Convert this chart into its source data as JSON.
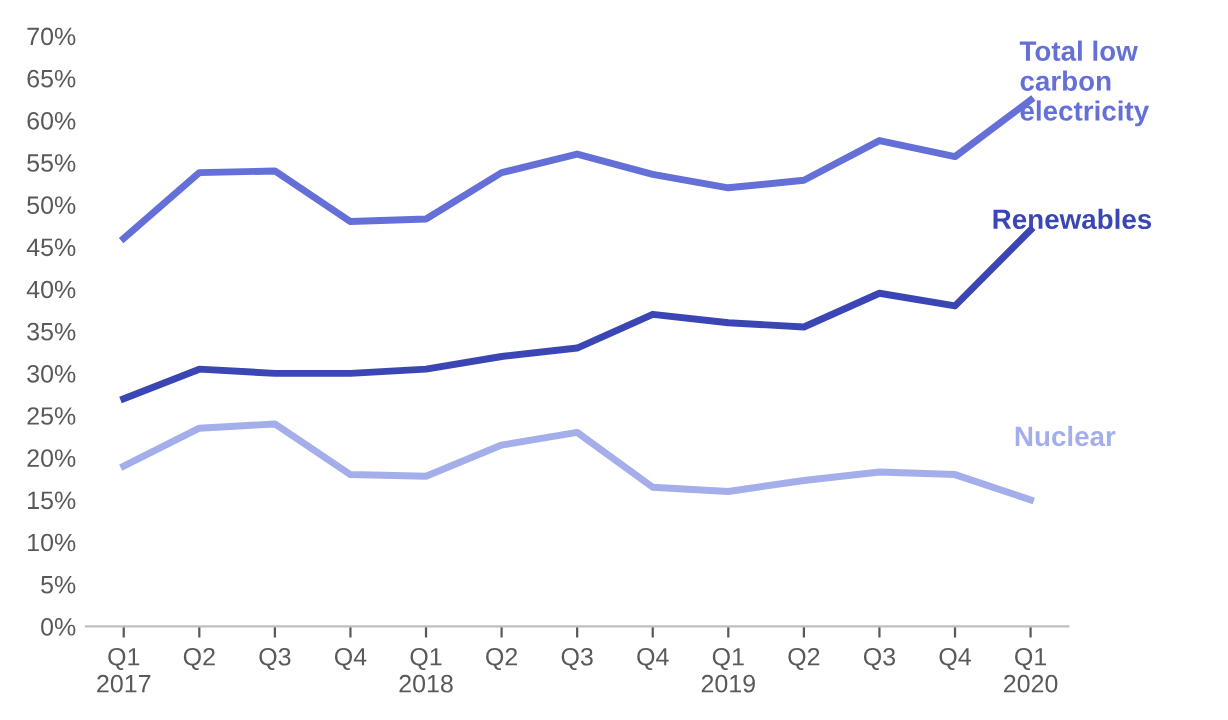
{
  "chart_data": {
    "type": "line",
    "categories": [
      "Q1\n2017",
      "Q2",
      "Q3",
      "Q4",
      "Q1\n2018",
      "Q2",
      "Q3",
      "Q4",
      "Q1\n2019",
      "Q2",
      "Q3",
      "Q4",
      "Q1\n2020"
    ],
    "series": [
      {
        "name": "Total low\ncarbon\nelectricity",
        "color": "#6470d8",
        "values": [
          46,
          53.8,
          54,
          48,
          48.3,
          53.8,
          56,
          53.6,
          52,
          52.9,
          57.6,
          55.7,
          62.4
        ]
      },
      {
        "name": "Renewables",
        "color": "#3b46b5",
        "values": [
          27,
          30.5,
          30,
          30,
          30.5,
          32,
          33,
          37,
          36,
          35.5,
          39.5,
          38,
          47
        ]
      },
      {
        "name": "Nuclear",
        "color": "#a4aeea",
        "values": [
          19,
          23.5,
          24,
          18,
          17.8,
          21.5,
          23,
          16.5,
          16,
          17.3,
          18.3,
          18,
          15
        ]
      }
    ],
    "ylim": [
      0,
      70
    ],
    "yticks": [
      {
        "value": 0,
        "label": "0%"
      },
      {
        "value": 5,
        "label": "5%"
      },
      {
        "value": 10,
        "label": "10%"
      },
      {
        "value": 15,
        "label": "15%"
      },
      {
        "value": 20,
        "label": "20%"
      },
      {
        "value": 25,
        "label": "25%"
      },
      {
        "value": 30,
        "label": "30%"
      },
      {
        "value": 35,
        "label": "35%"
      },
      {
        "value": 40,
        "label": "40%"
      },
      {
        "value": 45,
        "label": "45%"
      },
      {
        "value": 50,
        "label": "50%"
      },
      {
        "value": 55,
        "label": "55%"
      },
      {
        "value": 60,
        "label": "60%"
      },
      {
        "value": 65,
        "label": "65%"
      },
      {
        "value": 70,
        "label": "70%"
      }
    ],
    "grid": false,
    "legend": false,
    "marker": "none",
    "line_style": "solid"
  }
}
